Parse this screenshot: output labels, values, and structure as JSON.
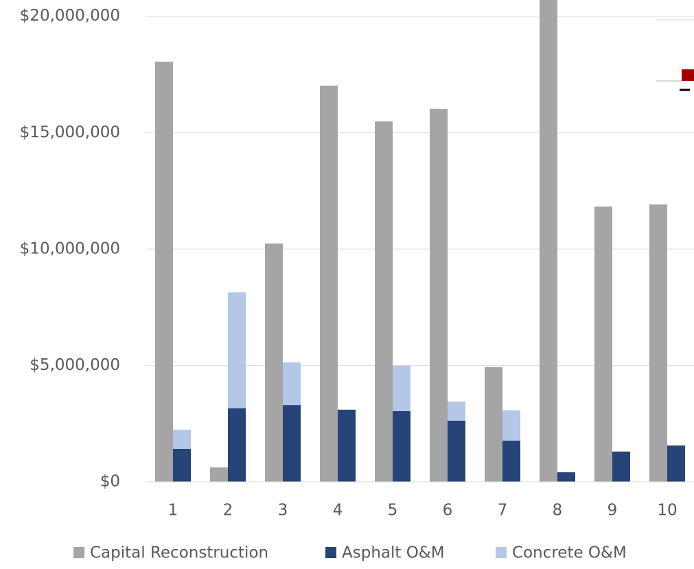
{
  "chart_data": {
    "type": "bar",
    "stacked": true,
    "categories": [
      "1",
      "2",
      "3",
      "4",
      "5",
      "6",
      "7",
      "8",
      "9",
      "10"
    ],
    "series": [
      {
        "name": "Capital Reconstruction",
        "color": "#a5a5a5",
        "stack": "a",
        "values": [
          18050000,
          620000,
          10240000,
          17020000,
          15490000,
          16020000,
          4930000,
          22000000,
          11830000,
          11920000
        ]
      },
      {
        "name": "Asphalt O&M",
        "color": "#264478",
        "stack": "b",
        "values": [
          1420000,
          3160000,
          3300000,
          3100000,
          3040000,
          2630000,
          1770000,
          410000,
          1300000,
          1560000
        ]
      },
      {
        "name": "Concrete O&M",
        "color": "#b4c7e7",
        "stack": "b",
        "values": [
          820000,
          4980000,
          1830000,
          0,
          1950000,
          820000,
          1300000,
          0,
          0,
          0
        ]
      }
    ],
    "ylim": [
      0,
      20700000
    ],
    "yticks": [
      {
        "value": 0,
        "label": "$0"
      },
      {
        "value": 5000000,
        "label": "$5,000,000"
      },
      {
        "value": 10000000,
        "label": "$10,000,000"
      },
      {
        "value": 15000000,
        "label": "$15,000,000"
      },
      {
        "value": 20000000,
        "label": "$20,000,000"
      }
    ],
    "grid": true,
    "legend": "bottom"
  }
}
